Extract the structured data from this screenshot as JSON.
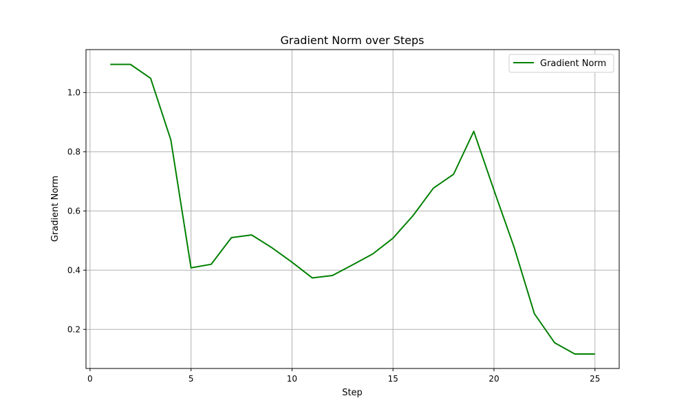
{
  "chart_data": {
    "type": "line",
    "title": "Gradient Norm over Steps",
    "xlabel": "Step",
    "ylabel": "Gradient Norm",
    "xlim": [
      -0.2,
      26.2
    ],
    "ylim": [
      0.068,
      1.145
    ],
    "xticks": [
      0,
      5,
      10,
      15,
      20,
      25
    ],
    "yticks": [
      0.2,
      0.4,
      0.6,
      0.8,
      1.0
    ],
    "xtick_labels": [
      "0",
      "5",
      "10",
      "15",
      "20",
      "25"
    ],
    "ytick_labels": [
      "0.2",
      "0.4",
      "0.6",
      "0.8",
      "1.0"
    ],
    "grid": true,
    "legend_position": "top-right",
    "series": [
      {
        "name": "Gradient Norm",
        "color": "#008000",
        "x": [
          1,
          2,
          3,
          4,
          5,
          6,
          7,
          8,
          9,
          10,
          11,
          12,
          13,
          14,
          15,
          16,
          17,
          18,
          19,
          20,
          21,
          22,
          23,
          24,
          25
        ],
        "y": [
          1.095,
          1.095,
          1.048,
          0.84,
          0.408,
          0.42,
          0.51,
          0.519,
          0.476,
          0.427,
          0.374,
          0.382,
          0.418,
          0.455,
          0.508,
          0.585,
          0.677,
          0.724,
          0.869,
          0.67,
          0.477,
          0.253,
          0.155,
          0.117,
          0.117
        ]
      }
    ]
  }
}
